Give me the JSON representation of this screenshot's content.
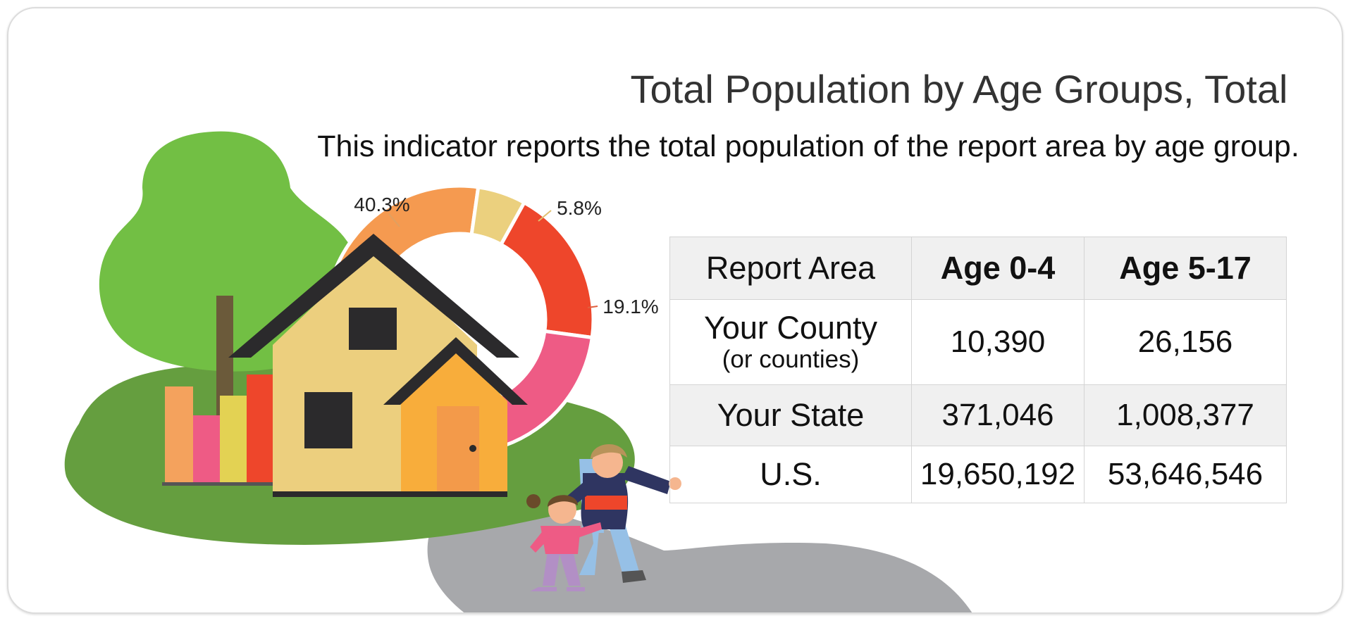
{
  "header": {
    "title": "Total Population by Age Groups, Total",
    "subtitle": "This indicator reports the total population of the report area by age group."
  },
  "chart_data": {
    "type": "pie",
    "variant": "donut",
    "slices": [
      {
        "label": "40.3%",
        "value": 40.3,
        "color": "#f59a50"
      },
      {
        "label": "5.8%",
        "value": 5.8,
        "color": "#ebd07e"
      },
      {
        "label": "19.1%",
        "value": 19.1,
        "color": "#ee462b"
      },
      {
        "label": "",
        "value": 34.8,
        "color": "#ee5b85"
      }
    ]
  },
  "table": {
    "columns": [
      "Report Area",
      "Age 0-4",
      "Age 5-17"
    ],
    "rows": [
      {
        "label": "Your County",
        "sublabel": "(or counties)",
        "age_0_4": "10,390",
        "age_5_17": "26,156"
      },
      {
        "label": "Your State",
        "age_0_4": "371,046",
        "age_5_17": "1,008,377"
      },
      {
        "label": "U.S.",
        "age_0_4": "19,650,192",
        "age_5_17": "53,646,546"
      }
    ]
  },
  "colors": {
    "tree": "#72bf44",
    "grass": "#659e3f",
    "path": "#a7a8ab",
    "roof": "#2b2a2c",
    "house": "#eccf7e",
    "annex": "#f8ad3b",
    "table_shade": "#f0f0f0"
  }
}
